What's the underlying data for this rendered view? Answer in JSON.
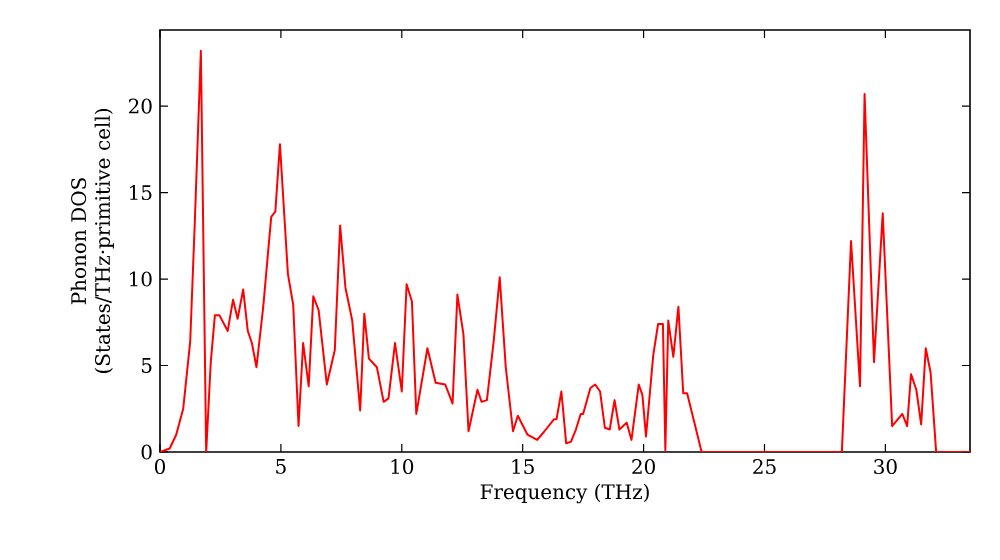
{
  "chart_data": {
    "type": "line",
    "xlabel": "Frequency (THz)",
    "ylabel": "Phonon DOS (States/THz·primitive cell)",
    "x": [
      0,
      0.4,
      0.67,
      0.96,
      1.25,
      1.44,
      1.69,
      1.91,
      2.1,
      2.27,
      2.46,
      2.8,
      3.02,
      3.21,
      3.44,
      3.63,
      3.8,
      3.99,
      4.27,
      4.6,
      4.77,
      4.96,
      5.29,
      5.51,
      5.73,
      5.92,
      6.15,
      6.34,
      6.56,
      6.9,
      7.23,
      7.45,
      7.67,
      7.95,
      8.28,
      8.45,
      8.64,
      8.97,
      9.25,
      9.45,
      9.72,
      10.0,
      10.2,
      10.42,
      10.6,
      11.06,
      11.4,
      11.8,
      12.1,
      12.3,
      12.55,
      12.76,
      13.13,
      13.3,
      13.52,
      13.8,
      14.05,
      14.3,
      14.6,
      14.8,
      15.2,
      15.6,
      15.9,
      16.3,
      16.4,
      16.6,
      16.8,
      17.0,
      17.2,
      17.4,
      17.5,
      17.8,
      18.0,
      18.2,
      18.4,
      18.6,
      18.8,
      19.0,
      19.3,
      19.5,
      19.8,
      19.95,
      20.1,
      20.4,
      20.6,
      20.8,
      20.9,
      21.02,
      21.23,
      21.44,
      21.64,
      21.8,
      22.1,
      22.4,
      28.2,
      28.58,
      28.95,
      29.14,
      29.53,
      29.89,
      30.28,
      30.7,
      30.9,
      31.06,
      31.28,
      31.48,
      31.67,
      31.87,
      32.1,
      33.5
    ],
    "values": [
      0,
      0.2,
      1.0,
      2.5,
      6.4,
      13.3,
      23.2,
      0,
      5.2,
      7.9,
      7.9,
      7.0,
      8.8,
      7.7,
      9.4,
      7.0,
      6.3,
      4.9,
      8.4,
      13.6,
      13.9,
      17.8,
      10.3,
      8.5,
      1.5,
      6.3,
      3.8,
      9.0,
      8.2,
      3.9,
      5.9,
      13.1,
      9.5,
      7.6,
      2.4,
      8.0,
      5.4,
      4.9,
      2.9,
      3.1,
      6.3,
      3.5,
      9.7,
      8.7,
      2.2,
      6.0,
      4.0,
      3.9,
      2.8,
      9.1,
      6.8,
      1.2,
      3.6,
      2.9,
      3.0,
      6.4,
      10.1,
      4.9,
      1.2,
      2.1,
      1.0,
      0.7,
      1.2,
      1.9,
      1.9,
      3.5,
      0.5,
      0.6,
      1.3,
      2.2,
      2.2,
      3.7,
      3.9,
      3.5,
      1.4,
      1.3,
      3.0,
      1.3,
      1.7,
      0.7,
      3.9,
      3.3,
      0.9,
      5.6,
      7.4,
      7.4,
      0.1,
      7.6,
      5.5,
      8.4,
      3.4,
      3.4,
      1.7,
      0,
      0,
      12.2,
      3.8,
      20.7,
      5.2,
      13.8,
      1.5,
      2.2,
      1.5,
      4.5,
      3.6,
      1.6,
      6.0,
      4.6,
      0,
      0
    ],
    "color": "#ff0000",
    "xlim": [
      0,
      33.5
    ],
    "ylim": [
      0,
      24.4
    ],
    "xticks": [
      0,
      5,
      10,
      15,
      20,
      25,
      30
    ],
    "yticks": [
      0,
      5,
      10,
      15,
      20
    ]
  }
}
